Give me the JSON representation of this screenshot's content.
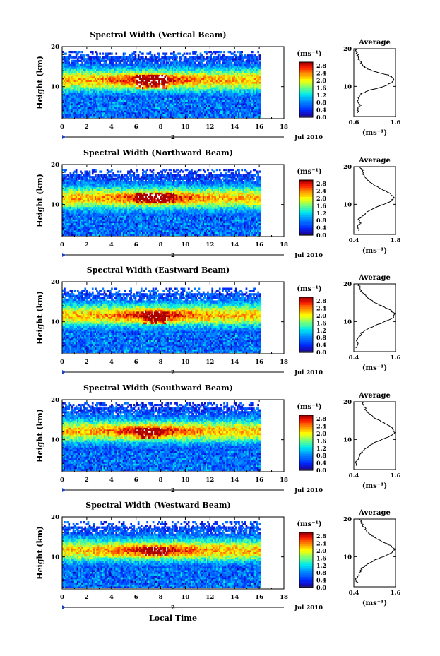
{
  "figure": {
    "ylabel": "Height (km)",
    "xlabel": "Local Time",
    "date_label": "Jul 2010",
    "day_marker": "2",
    "colorbar_unit": "(ms⁻¹)",
    "average_title": "Average",
    "average_unit": "(ms⁻¹)"
  },
  "chart_data": [
    {
      "type": "heatmap",
      "title": "Spectral Width (Vertical Beam)",
      "xlabel": "Local Time",
      "ylabel": "Height (km)",
      "xlim": [
        0,
        18
      ],
      "xticks": [
        0,
        2,
        4,
        6,
        8,
        10,
        12,
        14,
        16,
        18
      ],
      "ylim": [
        2,
        20
      ],
      "yticks": [
        10,
        20
      ],
      "colorbar": {
        "unit": "(ms⁻¹)",
        "ticks": [
          0.0,
          0.4,
          0.8,
          1.2,
          1.6,
          2.0,
          2.4,
          2.8
        ],
        "range": [
          0.0,
          3.0
        ]
      },
      "features": {
        "data_end_hour": 16,
        "peak_height_km": 11.5,
        "core_hours": [
          6.0,
          8.5
        ],
        "core_height_km": [
          9.5,
          13.0
        ],
        "core_value": 2.9,
        "layer_value": 1.5,
        "upper_cutoff_km": 17.5
      },
      "average_profile": {
        "title": "Average",
        "unit": "(ms⁻¹)",
        "xlim": [
          0.6,
          1.6
        ],
        "xticks": [
          0.6,
          1.6
        ],
        "height_km": [
          3,
          4,
          5,
          6,
          7,
          8,
          9,
          10,
          11,
          12,
          13,
          14,
          15,
          16,
          17,
          18,
          19,
          20
        ],
        "width": [
          0.72,
          0.68,
          0.76,
          0.69,
          0.71,
          0.78,
          0.98,
          1.32,
          1.52,
          1.57,
          1.42,
          1.08,
          0.86,
          0.78,
          0.73,
          0.7,
          0.66,
          0.64
        ]
      }
    },
    {
      "type": "heatmap",
      "title": "Spectral Width (Northward Beam)",
      "xlabel": "Local Time",
      "ylabel": "Height (km)",
      "xlim": [
        0,
        18
      ],
      "xticks": [
        0,
        2,
        4,
        6,
        8,
        10,
        12,
        14,
        16,
        18
      ],
      "ylim": [
        2,
        20
      ],
      "yticks": [
        10,
        20
      ],
      "colorbar": {
        "unit": "(ms⁻¹)",
        "ticks": [
          0.0,
          0.4,
          0.8,
          1.2,
          1.6,
          2.0,
          2.4,
          2.8
        ],
        "range": [
          0.0,
          3.0
        ]
      },
      "features": {
        "data_end_hour": 16,
        "peak_height_km": 11.5,
        "core_hours": [
          6.0,
          9.0
        ],
        "core_height_km": [
          10.0,
          13.0
        ],
        "core_value": 2.8,
        "layer_value": 1.6,
        "upper_cutoff_km": 17.5
      },
      "average_profile": {
        "title": "Average",
        "unit": "(ms⁻¹)",
        "xlim": [
          0.4,
          1.8
        ],
        "xticks": [
          0.4,
          1.8
        ],
        "height_km": [
          3,
          4,
          5,
          6,
          7,
          8,
          9,
          10,
          11,
          12,
          13,
          14,
          15,
          16,
          17,
          18,
          19,
          20
        ],
        "width": [
          0.58,
          0.52,
          0.62,
          0.55,
          0.7,
          0.86,
          1.08,
          1.4,
          1.68,
          1.74,
          1.58,
          1.34,
          1.1,
          0.92,
          0.82,
          0.72,
          0.7,
          0.6
        ]
      }
    },
    {
      "type": "heatmap",
      "title": "Spectral Width (Eastward Beam)",
      "xlabel": "Local Time",
      "ylabel": "Height (km)",
      "xlim": [
        0,
        18
      ],
      "xticks": [
        0,
        2,
        4,
        6,
        8,
        10,
        12,
        14,
        16,
        18
      ],
      "ylim": [
        2,
        20
      ],
      "yticks": [
        10,
        20
      ],
      "colorbar": {
        "unit": "(ms⁻¹)",
        "ticks": [
          0.0,
          0.4,
          0.8,
          1.2,
          1.6,
          2.0,
          2.4,
          2.8
        ],
        "range": [
          0.0,
          3.0
        ]
      },
      "features": {
        "data_end_hour": 16,
        "peak_height_km": 11.5,
        "core_hours": [
          6.5,
          8.5
        ],
        "core_height_km": [
          9.5,
          12.5
        ],
        "core_value": 2.8,
        "layer_value": 1.5,
        "upper_cutoff_km": 17.0
      },
      "average_profile": {
        "title": "Average",
        "unit": "(ms⁻¹)",
        "xlim": [
          0.4,
          1.6
        ],
        "xticks": [
          0.4,
          1.6
        ],
        "height_km": [
          3,
          4,
          5,
          6,
          7,
          8,
          9,
          10,
          11,
          12,
          13,
          14,
          15,
          16,
          17,
          18,
          19,
          20
        ],
        "width": [
          0.48,
          0.52,
          0.45,
          0.56,
          0.62,
          0.78,
          1.02,
          1.32,
          1.52,
          1.58,
          1.46,
          1.22,
          1.02,
          0.84,
          0.74,
          0.62,
          0.58,
          0.52
        ]
      }
    },
    {
      "type": "heatmap",
      "title": "Spectral Width (Southward Beam)",
      "xlabel": "Local Time",
      "ylabel": "Height (km)",
      "xlim": [
        0,
        18
      ],
      "xticks": [
        0,
        2,
        4,
        6,
        8,
        10,
        12,
        14,
        16,
        18
      ],
      "ylim": [
        2,
        20
      ],
      "yticks": [
        10,
        20
      ],
      "colorbar": {
        "unit": "(ms⁻¹)",
        "ticks": [
          0.0,
          0.4,
          0.8,
          1.2,
          1.6,
          2.0,
          2.4,
          2.8
        ],
        "range": [
          0.0,
          3.0
        ]
      },
      "features": {
        "data_end_hour": 16,
        "peak_height_km": 12.0,
        "core_hours": [
          6.0,
          8.0
        ],
        "core_height_km": [
          10.0,
          13.0
        ],
        "core_value": 2.8,
        "layer_value": 1.6,
        "upper_cutoff_km": 18.0
      },
      "average_profile": {
        "title": "Average",
        "unit": "(ms⁻¹)",
        "xlim": [
          0.4,
          1.6
        ],
        "xticks": [
          0.4,
          1.6
        ],
        "height_km": [
          3,
          4,
          5,
          6,
          7,
          8,
          9,
          10,
          11,
          12,
          13,
          14,
          15,
          16,
          17,
          18,
          19,
          20
        ],
        "width": [
          0.5,
          0.46,
          0.52,
          0.58,
          0.66,
          0.8,
          0.96,
          1.22,
          1.48,
          1.58,
          1.5,
          1.34,
          1.14,
          0.96,
          0.84,
          0.74,
          0.7,
          0.64
        ]
      }
    },
    {
      "type": "heatmap",
      "title": "Spectral Width (Westward Beam)",
      "xlabel": "Local Time",
      "ylabel": "Height (km)",
      "xlim": [
        0,
        18
      ],
      "xticks": [
        0,
        2,
        4,
        6,
        8,
        10,
        12,
        14,
        16,
        18
      ],
      "ylim": [
        2,
        20
      ],
      "yticks": [
        10,
        20
      ],
      "colorbar": {
        "unit": "(ms⁻¹)",
        "ticks": [
          0.0,
          0.4,
          0.8,
          1.2,
          1.6,
          2.0,
          2.4,
          2.8
        ],
        "range": [
          0.0,
          3.0
        ]
      },
      "features": {
        "data_end_hour": 16,
        "peak_height_km": 11.5,
        "core_hours": [
          6.5,
          8.5
        ],
        "core_height_km": [
          10.0,
          12.5
        ],
        "core_value": 2.8,
        "layer_value": 1.5,
        "upper_cutoff_km": 17.5
      },
      "average_profile": {
        "title": "Average",
        "unit": "(ms⁻¹)",
        "xlim": [
          0.4,
          1.6
        ],
        "xticks": [
          0.4,
          1.6
        ],
        "height_km": [
          3,
          4,
          5,
          6,
          7,
          8,
          9,
          10,
          11,
          12,
          13,
          14,
          15,
          16,
          17,
          18,
          19,
          20
        ],
        "width": [
          0.5,
          0.46,
          0.54,
          0.58,
          0.64,
          0.78,
          0.98,
          1.26,
          1.5,
          1.58,
          1.44,
          1.22,
          1.02,
          0.86,
          0.76,
          0.68,
          0.62,
          0.58
        ]
      }
    }
  ]
}
